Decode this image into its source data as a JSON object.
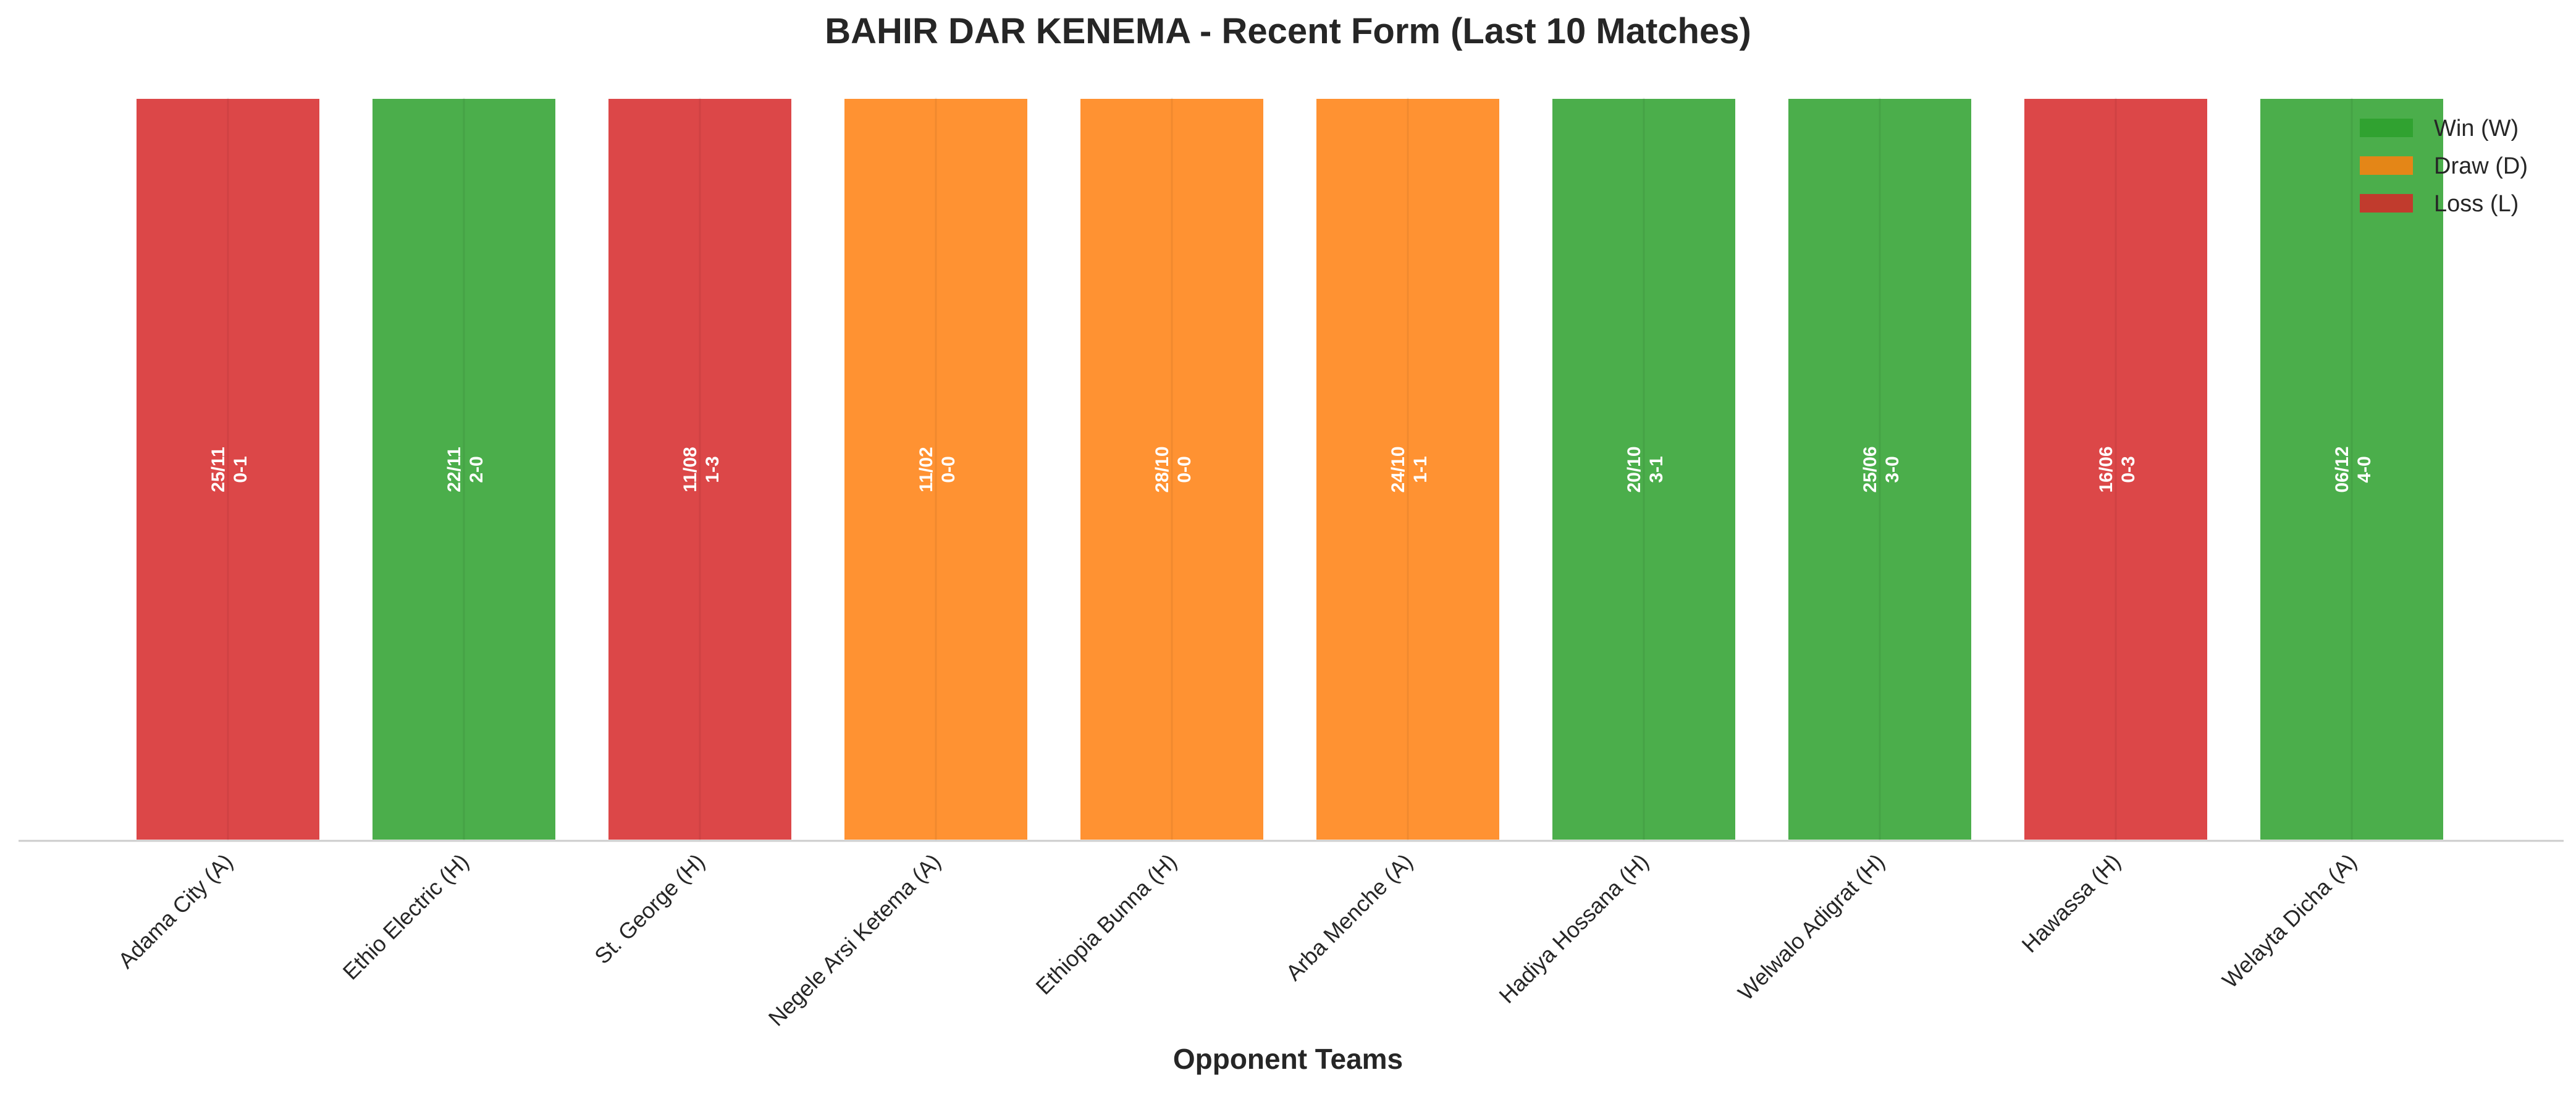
{
  "chart_data": {
    "type": "bar",
    "title": "BAHIR DAR KENEMA - Recent Form (Last 10 Matches)",
    "xlabel": "Opponent Teams",
    "ylabel": "",
    "ylim": [
      0,
      1
    ],
    "grid": false,
    "legend_position": "top-right",
    "categories": [
      "Adama City (A)",
      "Ethio Electric (H)",
      "St. George (H)",
      "Negele Arsi Ketema (A)",
      "Ethiopia Bunna (H)",
      "Arba Menche (A)",
      "Hadiya Hossana (H)",
      "Welwalo Adigrat (H)",
      "Hawassa (H)",
      "Welayta Dicha (A)"
    ],
    "values": [
      1,
      1,
      1,
      1,
      1,
      1,
      1,
      1,
      1,
      1
    ],
    "results": [
      "L",
      "W",
      "L",
      "D",
      "D",
      "D",
      "W",
      "W",
      "L",
      "W"
    ],
    "dates": [
      "25/11",
      "22/11",
      "11/08",
      "11/02",
      "28/10",
      "24/10",
      "20/10",
      "25/06",
      "16/06",
      "06/12"
    ],
    "scores": [
      "0-1",
      "2-0",
      "1-3",
      "0-0",
      "0-0",
      "1-1",
      "3-1",
      "3-0",
      "0-3",
      "4-0"
    ],
    "legend": [
      {
        "key": "W",
        "label": "Win (W)"
      },
      {
        "key": "D",
        "label": "Draw (D)"
      },
      {
        "key": "L",
        "label": "Loss (L)"
      }
    ],
    "colors": {
      "W": "#2ca02c",
      "D": "#ff7f0e",
      "L": "#d62728"
    }
  }
}
